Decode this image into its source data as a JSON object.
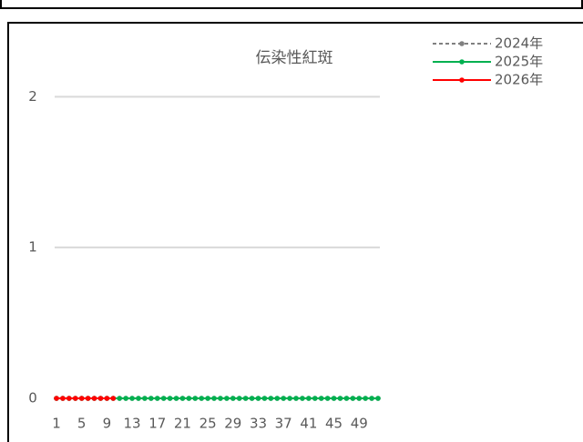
{
  "chart_data": {
    "type": "line",
    "title": "伝染性紅斑",
    "categories": [
      "1",
      null,
      null,
      null,
      "5",
      null,
      null,
      null,
      "9",
      null,
      null,
      null,
      "13",
      null,
      null,
      null,
      "17",
      null,
      null,
      null,
      "21",
      null,
      null,
      null,
      "25",
      null,
      null,
      null,
      "29",
      null,
      null,
      null,
      "33",
      null,
      null,
      null,
      "37",
      null,
      null,
      null,
      "41",
      null,
      null,
      null,
      "45",
      null,
      null,
      null,
      "49",
      null,
      null,
      null
    ],
    "series": [
      {
        "name": "2024年",
        "color": "#808080",
        "dashed": true,
        "values": [
          0,
          0,
          0,
          0,
          0,
          0,
          0,
          0,
          0,
          0,
          0,
          0,
          0,
          0,
          0,
          0,
          0,
          0,
          0,
          0,
          0,
          0,
          0,
          0,
          0,
          0,
          0,
          0,
          0,
          0,
          0,
          0,
          0,
          0,
          0,
          0,
          0,
          0,
          0,
          0,
          0,
          0,
          0,
          0,
          0,
          0,
          0,
          0,
          0,
          0,
          0,
          0
        ]
      },
      {
        "name": "2025年",
        "color": "#00b050",
        "dashed": false,
        "values": [
          0,
          0,
          0,
          0,
          0,
          0,
          0,
          0,
          0,
          0,
          0,
          0,
          0,
          0,
          0,
          0,
          0,
          0,
          0,
          0,
          0,
          0,
          0,
          0,
          0,
          0,
          0,
          0,
          0,
          0,
          0,
          0,
          0,
          0,
          0,
          0,
          0,
          0,
          0,
          0,
          0,
          0,
          0,
          0,
          0,
          0,
          0,
          0,
          0,
          0,
          0,
          0
        ]
      },
      {
        "name": "2026年",
        "color": "#ff0000",
        "dashed": false,
        "values": [
          0,
          0,
          0,
          0,
          0,
          0,
          0,
          0,
          0,
          0,
          null,
          null,
          null,
          null,
          null,
          null,
          null,
          null,
          null,
          null,
          null,
          null,
          null,
          null,
          null,
          null,
          null,
          null,
          null,
          null,
          null,
          null,
          null,
          null,
          null,
          null,
          null,
          null,
          null,
          null,
          null,
          null,
          null,
          null,
          null,
          null,
          null,
          null,
          null,
          null,
          null,
          null
        ]
      }
    ],
    "ylim": [
      0,
      2.4
    ],
    "yticks": [
      0,
      1,
      2
    ],
    "grid": true,
    "legend": "top-right"
  }
}
